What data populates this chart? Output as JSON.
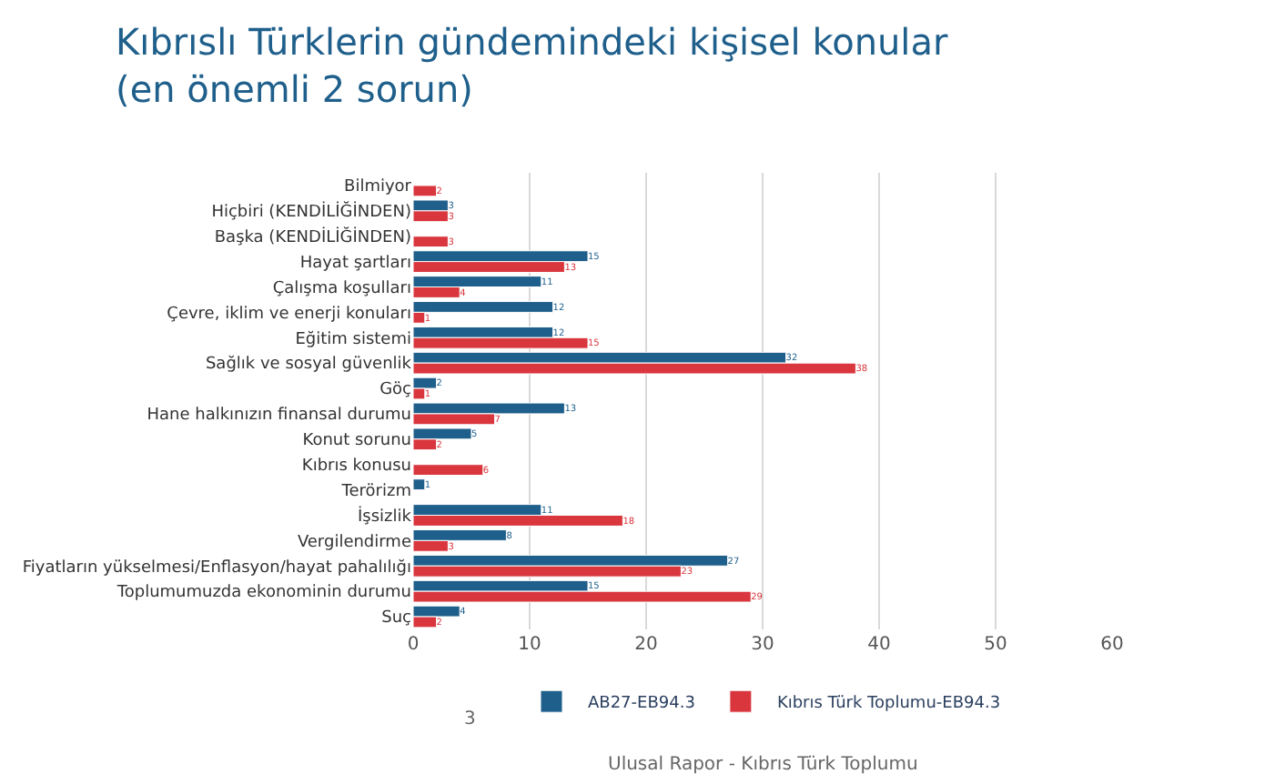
{
  "chart_data": {
    "type": "bar",
    "orientation": "horizontal",
    "title": "Kıbrıslı Türklerin gündemindeki kişisel konular (en önemli 2 sorun)",
    "categories": [
      "Bilmiyor",
      "Hiçbiri (KENDİLİĞİNDEN)",
      "Başka (KENDİLİĞİNDEN)",
      "Hayat şartları",
      "Çalışma koşulları",
      "Çevre, iklim ve enerji konuları",
      "Eğitim sistemi",
      "Sağlık ve sosyal güvenlik",
      "Göç",
      "Hane halkınızın finansal durumu",
      "Konut sorunu",
      "Kıbrıs konusu",
      "Terörizm",
      "İşsizlik",
      "Vergilendirme",
      "Fiyatların yükselmesi/Enflasyon/hayat pahalılığı",
      "Toplumumuzda ekonominin durumu",
      "Suç"
    ],
    "series": [
      {
        "name": "AB27-EB94.3",
        "color": "#1f5f8b",
        "values": [
          null,
          3,
          null,
          15,
          11,
          12,
          12,
          32,
          2,
          13,
          5,
          null,
          1,
          11,
          8,
          27,
          15,
          4
        ]
      },
      {
        "name": "Kıbrıs Türk Toplumu-EB94.3",
        "color": "#d9363e",
        "values": [
          2,
          3,
          3,
          13,
          4,
          1,
          15,
          38,
          1,
          7,
          2,
          6,
          null,
          18,
          3,
          23,
          29,
          2
        ]
      }
    ],
    "xlim": [
      0,
      60
    ],
    "xticks": [
      0,
      10,
      20,
      30,
      40,
      50,
      60
    ],
    "grid": "x",
    "legend": "bottom",
    "data_labels": true,
    "annotations": [
      "3",
      "Ulusal Rapor - Kıbrıs Türk Toplumu"
    ]
  }
}
